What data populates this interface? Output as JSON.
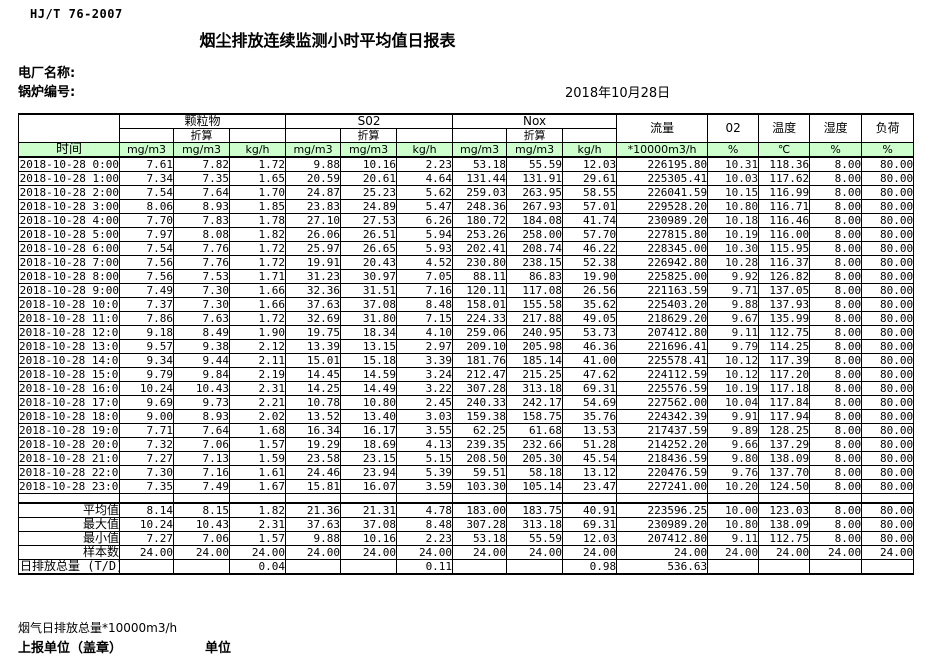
{
  "page": {
    "standard": "HJ/T  76-2007",
    "title": "烟尘排放连续监测小时平均值日报表",
    "plant_label": "电厂名称:",
    "boiler_label": "锅炉编号:",
    "date": "2018年10月28日"
  },
  "table": {
    "time_header": "时间",
    "groups": [
      {
        "label": "颗粒物",
        "sub": "折算",
        "units": [
          "mg/m3",
          "mg/m3",
          "kg/h"
        ]
      },
      {
        "label": "S02",
        "sub": "折算",
        "units": [
          "mg/m3",
          "mg/m3",
          "kg/h"
        ]
      },
      {
        "label": "Nox",
        "sub": "折算",
        "units": [
          "mg/m3",
          "mg/m3",
          "kg/h"
        ]
      }
    ],
    "singles": [
      {
        "label": "流量",
        "unit": "*10000m3/h"
      },
      {
        "label": "02",
        "unit": "%"
      },
      {
        "label": "温度",
        "unit": "℃"
      },
      {
        "label": "湿度",
        "unit": "%"
      },
      {
        "label": "负荷",
        "unit": "%"
      }
    ],
    "rows": [
      {
        "time": "2018-10-28  0:00",
        "values": [
          "7.61",
          "7.82",
          "1.72",
          "9.88",
          "10.16",
          "2.23",
          "53.18",
          "55.59",
          "12.03",
          "226195.80",
          "10.31",
          "118.36",
          "8.00",
          "80.00"
        ]
      },
      {
        "time": "2018-10-28  1:00",
        "values": [
          "7.34",
          "7.35",
          "1.65",
          "20.59",
          "20.61",
          "4.64",
          "131.44",
          "131.91",
          "29.61",
          "225305.41",
          "10.03",
          "117.62",
          "8.00",
          "80.00"
        ]
      },
      {
        "time": "2018-10-28  2:00",
        "values": [
          "7.54",
          "7.64",
          "1.70",
          "24.87",
          "25.23",
          "5.62",
          "259.03",
          "263.95",
          "58.55",
          "226041.59",
          "10.15",
          "116.99",
          "8.00",
          "80.00"
        ]
      },
      {
        "time": "2018-10-28  3:00",
        "values": [
          "8.06",
          "8.93",
          "1.85",
          "23.83",
          "24.89",
          "5.47",
          "248.36",
          "267.93",
          "57.01",
          "229528.20",
          "10.80",
          "116.71",
          "8.00",
          "80.00"
        ]
      },
      {
        "time": "2018-10-28  4:00",
        "values": [
          "7.70",
          "7.83",
          "1.78",
          "27.10",
          "27.53",
          "6.26",
          "180.72",
          "184.08",
          "41.74",
          "230989.20",
          "10.18",
          "116.46",
          "8.00",
          "80.00"
        ]
      },
      {
        "time": "2018-10-28  5:00",
        "values": [
          "7.97",
          "8.08",
          "1.82",
          "26.06",
          "26.51",
          "5.94",
          "253.26",
          "258.00",
          "57.70",
          "227815.80",
          "10.19",
          "116.00",
          "8.00",
          "80.00"
        ]
      },
      {
        "time": "2018-10-28  6:00",
        "values": [
          "7.54",
          "7.76",
          "1.72",
          "25.97",
          "26.65",
          "5.93",
          "202.41",
          "208.74",
          "46.22",
          "228345.00",
          "10.30",
          "115.95",
          "8.00",
          "80.00"
        ]
      },
      {
        "time": "2018-10-28  7:00",
        "values": [
          "7.56",
          "7.76",
          "1.72",
          "19.91",
          "20.43",
          "4.52",
          "230.80",
          "238.15",
          "52.38",
          "226942.80",
          "10.28",
          "116.37",
          "8.00",
          "80.00"
        ]
      },
      {
        "time": "2018-10-28  8:00",
        "values": [
          "7.56",
          "7.53",
          "1.71",
          "31.23",
          "30.97",
          "7.05",
          "88.11",
          "86.83",
          "19.90",
          "225825.00",
          "9.92",
          "126.82",
          "8.00",
          "80.00"
        ]
      },
      {
        "time": "2018-10-28  9:00",
        "values": [
          "7.49",
          "7.30",
          "1.66",
          "32.36",
          "31.51",
          "7.16",
          "120.11",
          "117.08",
          "26.56",
          "221163.59",
          "9.71",
          "137.05",
          "8.00",
          "80.00"
        ]
      },
      {
        "time": "2018-10-28 10:00",
        "values": [
          "7.37",
          "7.30",
          "1.66",
          "37.63",
          "37.08",
          "8.48",
          "158.01",
          "155.58",
          "35.62",
          "225403.20",
          "9.88",
          "137.93",
          "8.00",
          "80.00"
        ]
      },
      {
        "time": "2018-10-28 11:00",
        "values": [
          "7.86",
          "7.63",
          "1.72",
          "32.69",
          "31.80",
          "7.15",
          "224.33",
          "217.88",
          "49.05",
          "218629.20",
          "9.67",
          "135.99",
          "8.00",
          "80.00"
        ]
      },
      {
        "time": "2018-10-28 12:00",
        "values": [
          "9.18",
          "8.49",
          "1.90",
          "19.75",
          "18.34",
          "4.10",
          "259.06",
          "240.95",
          "53.73",
          "207412.80",
          "9.11",
          "112.75",
          "8.00",
          "80.00"
        ]
      },
      {
        "time": "2018-10-28 13:00",
        "values": [
          "9.57",
          "9.38",
          "2.12",
          "13.39",
          "13.15",
          "2.97",
          "209.10",
          "205.98",
          "46.36",
          "221696.41",
          "9.79",
          "114.25",
          "8.00",
          "80.00"
        ]
      },
      {
        "time": "2018-10-28 14:00",
        "values": [
          "9.34",
          "9.44",
          "2.11",
          "15.01",
          "15.18",
          "3.39",
          "181.76",
          "185.14",
          "41.00",
          "225578.41",
          "10.12",
          "117.39",
          "8.00",
          "80.00"
        ]
      },
      {
        "time": "2018-10-28 15:00",
        "values": [
          "9.79",
          "9.84",
          "2.19",
          "14.45",
          "14.59",
          "3.24",
          "212.47",
          "215.25",
          "47.62",
          "224112.59",
          "10.12",
          "117.20",
          "8.00",
          "80.00"
        ]
      },
      {
        "time": "2018-10-28 16:00",
        "values": [
          "10.24",
          "10.43",
          "2.31",
          "14.25",
          "14.49",
          "3.22",
          "307.28",
          "313.18",
          "69.31",
          "225576.59",
          "10.19",
          "117.18",
          "8.00",
          "80.00"
        ]
      },
      {
        "time": "2018-10-28 17:00",
        "values": [
          "9.69",
          "9.73",
          "2.21",
          "10.78",
          "10.80",
          "2.45",
          "240.33",
          "242.17",
          "54.69",
          "227562.00",
          "10.04",
          "117.84",
          "8.00",
          "80.00"
        ]
      },
      {
        "time": "2018-10-28 18:00",
        "values": [
          "9.00",
          "8.93",
          "2.02",
          "13.52",
          "13.40",
          "3.03",
          "159.38",
          "158.75",
          "35.76",
          "224342.39",
          "9.91",
          "117.94",
          "8.00",
          "80.00"
        ]
      },
      {
        "time": "2018-10-28 19:00",
        "values": [
          "7.71",
          "7.64",
          "1.68",
          "16.34",
          "16.17",
          "3.55",
          "62.25",
          "61.68",
          "13.53",
          "217437.59",
          "9.89",
          "128.25",
          "8.00",
          "80.00"
        ]
      },
      {
        "time": "2018-10-28 20:00",
        "values": [
          "7.32",
          "7.06",
          "1.57",
          "19.29",
          "18.69",
          "4.13",
          "239.35",
          "232.66",
          "51.28",
          "214252.20",
          "9.66",
          "137.29",
          "8.00",
          "80.00"
        ]
      },
      {
        "time": "2018-10-28 21:00",
        "values": [
          "7.27",
          "7.13",
          "1.59",
          "23.58",
          "23.15",
          "5.15",
          "208.50",
          "205.30",
          "45.54",
          "218436.59",
          "9.80",
          "138.09",
          "8.00",
          "80.00"
        ]
      },
      {
        "time": "2018-10-28 22:00",
        "values": [
          "7.30",
          "7.16",
          "1.61",
          "24.46",
          "23.94",
          "5.39",
          "59.51",
          "58.18",
          "13.12",
          "220476.59",
          "9.76",
          "137.70",
          "8.00",
          "80.00"
        ]
      },
      {
        "time": "2018-10-28 23:00",
        "values": [
          "7.35",
          "7.49",
          "1.67",
          "15.81",
          "16.07",
          "3.59",
          "103.30",
          "105.14",
          "23.47",
          "227241.00",
          "10.20",
          "124.50",
          "8.00",
          "80.00"
        ]
      }
    ],
    "summary": [
      {
        "label": "平均值",
        "values": [
          "8.14",
          "8.15",
          "1.82",
          "21.36",
          "21.31",
          "4.78",
          "183.00",
          "183.75",
          "40.91",
          "223596.25",
          "10.00",
          "123.03",
          "8.00",
          "80.00"
        ]
      },
      {
        "label": "最大值",
        "values": [
          "10.24",
          "10.43",
          "2.31",
          "37.63",
          "37.08",
          "8.48",
          "307.28",
          "313.18",
          "69.31",
          "230989.20",
          "10.80",
          "138.09",
          "8.00",
          "80.00"
        ]
      },
      {
        "label": "最小值",
        "values": [
          "7.27",
          "7.06",
          "1.57",
          "9.88",
          "10.16",
          "2.23",
          "53.18",
          "55.59",
          "12.03",
          "207412.80",
          "9.11",
          "112.75",
          "8.00",
          "80.00"
        ]
      },
      {
        "label": "样本数",
        "values": [
          "24.00",
          "24.00",
          "24.00",
          "24.00",
          "24.00",
          "24.00",
          "24.00",
          "24.00",
          "24.00",
          "24.00",
          "24.00",
          "24.00",
          "24.00",
          "24.00"
        ]
      },
      {
        "label": "日排放总量 (T/D)",
        "values": [
          "",
          "",
          "0.04",
          "",
          "",
          "0.11",
          "",
          "",
          "0.98",
          "536.63",
          "",
          "",
          "",
          ""
        ]
      }
    ]
  },
  "footer": {
    "total_flow_label": "烟气日排放总量*10000m3/h",
    "report_unit_label": "上报单位（盖章）",
    "unit_label": "单位"
  },
  "colors": {
    "header_green": "#ccffcc",
    "border": "#000000"
  }
}
